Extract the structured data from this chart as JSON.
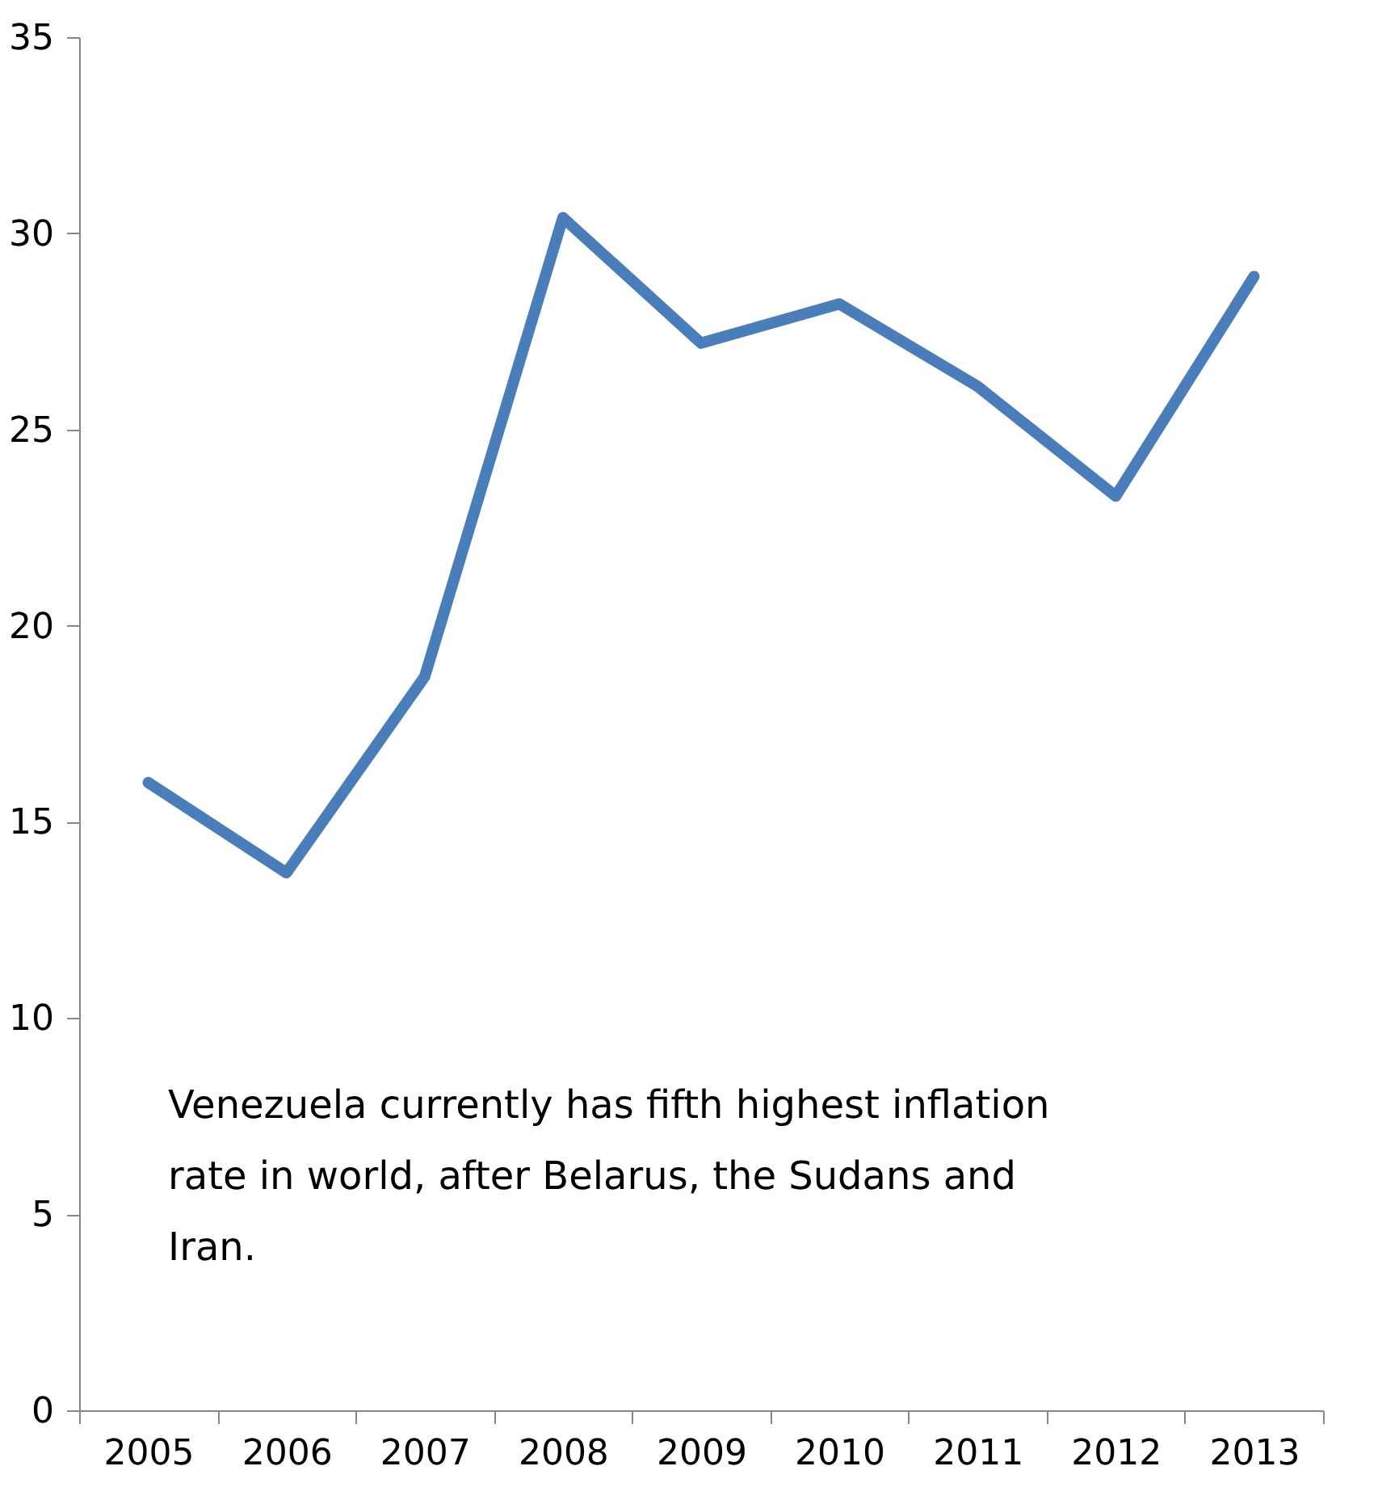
{
  "chart_data": {
    "type": "line",
    "categories": [
      "2005",
      "2006",
      "2007",
      "2008",
      "2009",
      "2010",
      "2011",
      "2012",
      "2013"
    ],
    "series": [
      {
        "color": "#4a7ebb",
        "values": [
          16.0,
          13.7,
          18.7,
          30.4,
          27.2,
          28.2,
          26.1,
          23.3,
          28.9
        ]
      }
    ],
    "ylim": [
      0,
      35
    ],
    "yticks": [
      0,
      5,
      10,
      15,
      20,
      25,
      30,
      35
    ],
    "grid": false,
    "legend": false,
    "marker": "none",
    "line_style": "solid",
    "annotations": [
      "Venezuela currently has fifth highest inflation rate in world, after Belarus, the Sudans and Iran."
    ]
  }
}
